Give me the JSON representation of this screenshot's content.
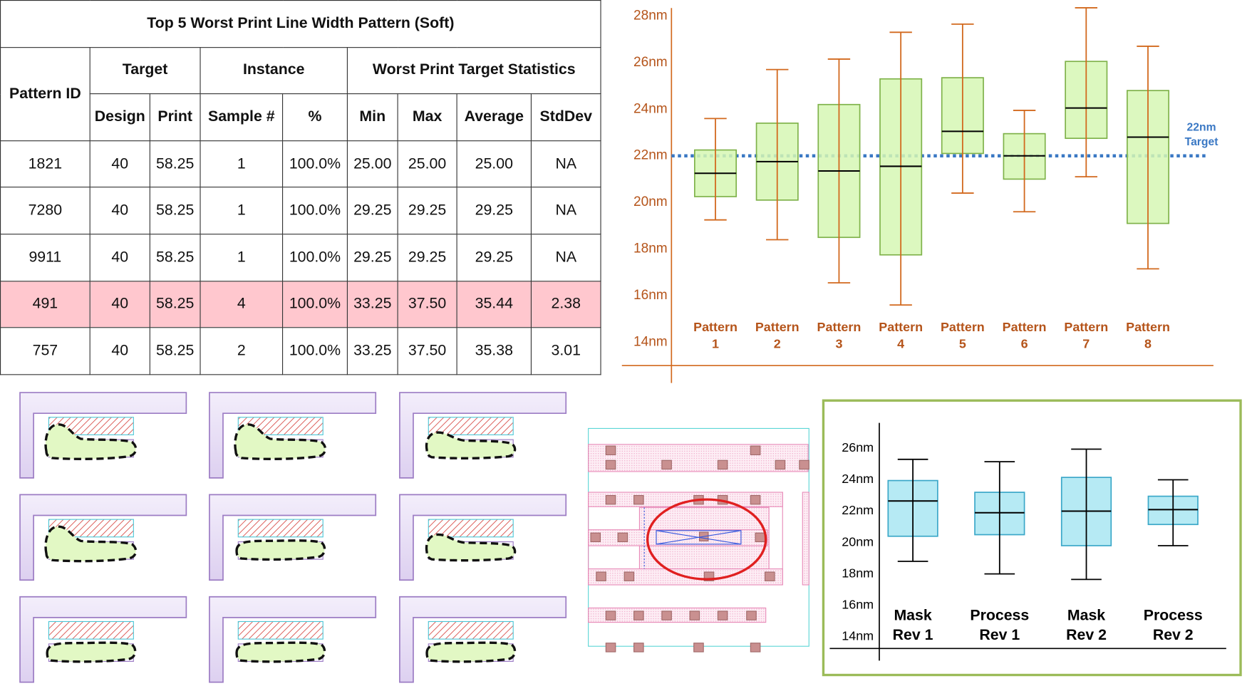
{
  "table": {
    "title": "Top 5 Worst Print Line Width Pattern (Soft)",
    "header": {
      "pattern_id": "Pattern ID",
      "target": "Target",
      "instance": "Instance",
      "stats": "Worst Print Target Statistics",
      "columns": [
        "Design",
        "Print",
        "Sample #",
        "%",
        "Min",
        "Max",
        "Average",
        "StdDev"
      ]
    },
    "rows": [
      [
        "1821",
        "40",
        "58.25",
        "1",
        "100.0%",
        "25.00",
        "25.00",
        "25.00",
        "NA"
      ],
      [
        "7280",
        "40",
        "58.25",
        "1",
        "100.0%",
        "29.25",
        "29.25",
        "29.25",
        "NA"
      ],
      [
        "9911",
        "40",
        "58.25",
        "1",
        "100.0%",
        "29.25",
        "29.25",
        "29.25",
        "NA"
      ],
      [
        "491",
        "40",
        "58.25",
        "4",
        "100.0%",
        "33.25",
        "37.50",
        "35.44",
        "2.38"
      ],
      [
        "757",
        "40",
        "58.25",
        "2",
        "100.0%",
        "33.25",
        "37.50",
        "35.38",
        "3.01"
      ]
    ],
    "highlight_row": 3
  },
  "chart_data": [
    {
      "type": "boxplot",
      "categories": [
        [
          "Pattern",
          "1"
        ],
        [
          "Pattern",
          "2"
        ],
        [
          "Pattern",
          "3"
        ],
        [
          "Pattern",
          "4"
        ],
        [
          "Pattern",
          "5"
        ],
        [
          "Pattern",
          "6"
        ],
        [
          "Pattern",
          "7"
        ],
        [
          "Pattern",
          "8"
        ]
      ],
      "stats": [
        {
          "low": 19.25,
          "q1": 20.25,
          "median": 21.25,
          "q3": 22.25,
          "high": 23.6
        },
        {
          "low": 18.4,
          "q1": 20.1,
          "median": 21.75,
          "q3": 23.4,
          "high": 25.7
        },
        {
          "low": 16.55,
          "q1": 18.5,
          "median": 21.35,
          "q3": 24.2,
          "high": 26.15
        },
        {
          "low": 15.6,
          "q1": 17.75,
          "median": 21.55,
          "q3": 25.3,
          "high": 27.3
        },
        {
          "low": 20.4,
          "q1": 22.1,
          "median": 23.05,
          "q3": 25.35,
          "high": 27.65
        },
        {
          "low": 19.6,
          "q1": 21.0,
          "median": 22.0,
          "q3": 22.95,
          "high": 23.95
        },
        {
          "low": 21.1,
          "q1": 22.75,
          "median": 24.05,
          "q3": 26.05,
          "high": 28.35
        },
        {
          "low": 17.15,
          "q1": 19.1,
          "median": 22.8,
          "q3": 24.8,
          "high": 26.7
        }
      ],
      "ylim": [
        13,
        28.5
      ],
      "yticks": [
        {
          "value": 14,
          "label": "14nm"
        },
        {
          "value": 16,
          "label": "16nm"
        },
        {
          "value": 18,
          "label": "18nm"
        },
        {
          "value": 20,
          "label": "20nm"
        },
        {
          "value": 22,
          "label": "22nm"
        },
        {
          "value": 24,
          "label": "24nm"
        },
        {
          "value": 26,
          "label": "26nm"
        },
        {
          "value": 28,
          "label": "28nm"
        }
      ],
      "target": 22,
      "target_label": [
        "22nm",
        "Target"
      ],
      "target_color": "#3a78c4",
      "box_color": "#d6f7b4",
      "box_edge": "#7fb24a",
      "whisker_color": "#d2691e",
      "median_color": "#000000",
      "label_color": "#b5541a"
    },
    {
      "type": "boxplot",
      "categories": [
        [
          "Mask",
          "Rev 1"
        ],
        [
          "Process",
          "Rev 1"
        ],
        [
          "Mask",
          "Rev 2"
        ],
        [
          "Process",
          "Rev 2"
        ]
      ],
      "stats": [
        {
          "low": 18.8,
          "q1": 20.4,
          "median": 22.65,
          "q3": 23.95,
          "high": 25.3
        },
        {
          "low": 18.0,
          "q1": 20.5,
          "median": 21.9,
          "q3": 23.2,
          "high": 25.15
        },
        {
          "low": 17.65,
          "q1": 19.8,
          "median": 22.0,
          "q3": 24.15,
          "high": 25.95
        },
        {
          "low": 19.8,
          "q1": 21.15,
          "median": 22.1,
          "q3": 22.95,
          "high": 24.0
        }
      ],
      "ylim": [
        13.25,
        27.6
      ],
      "yticks": [
        {
          "value": 14,
          "label": "14nm"
        },
        {
          "value": 16,
          "label": "16nm"
        },
        {
          "value": 18,
          "label": "18nm"
        },
        {
          "value": 20,
          "label": "20nm"
        },
        {
          "value": 22,
          "label": "22nm"
        },
        {
          "value": 24,
          "label": "24nm"
        },
        {
          "value": 26,
          "label": "26nm"
        }
      ],
      "box_color": "#a9e6f2",
      "box_edge": "#3aa7c8",
      "whisker_color": "#000000",
      "median_color": "#000000",
      "label_color": "#000000"
    }
  ]
}
